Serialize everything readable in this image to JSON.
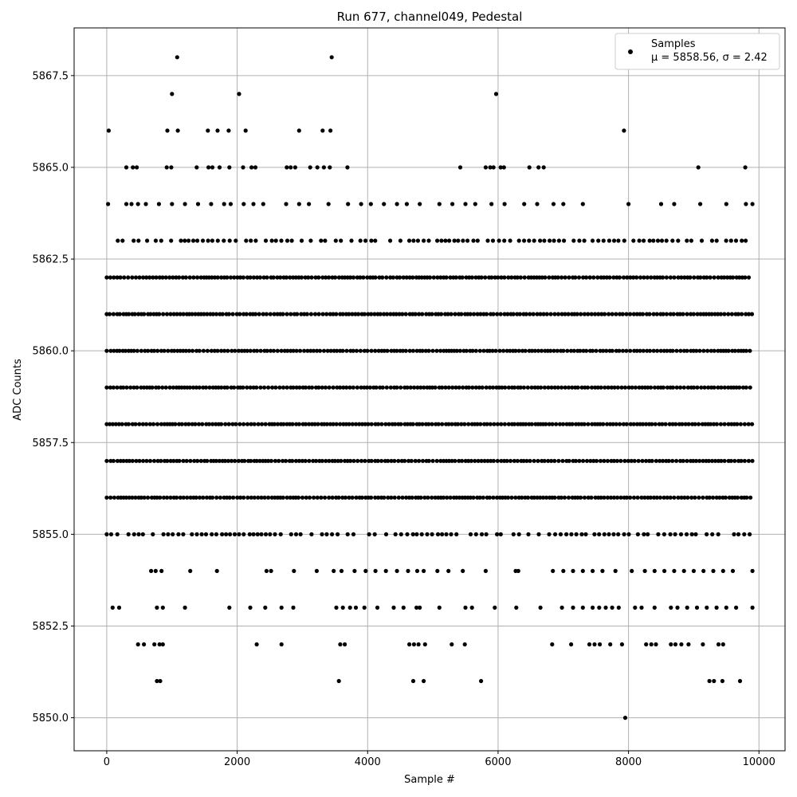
{
  "chart_data": {
    "type": "scatter",
    "title": "Run 677, channel049, Pedestal",
    "xlabel": "Sample #",
    "ylabel": "ADC Counts",
    "xlim": [
      -500,
      10400
    ],
    "ylim": [
      5849.1,
      5868.8
    ],
    "xticks": [
      0,
      2000,
      4000,
      6000,
      8000,
      10000
    ],
    "xtick_labels": [
      "0",
      "2000",
      "4000",
      "6000",
      "8000",
      "10000"
    ],
    "yticks": [
      5850.0,
      5852.5,
      5855.0,
      5857.5,
      5860.0,
      5862.5,
      5865.0,
      5867.5
    ],
    "ytick_labels": [
      "5850.0",
      "5852.5",
      "5855.0",
      "5857.5",
      "5860.0",
      "5862.5",
      "5865.0",
      "5867.5"
    ],
    "grid": true,
    "legend_position": "top-right",
    "marker_color": "#000000",
    "series": [
      {
        "name": "Samples",
        "stats_label": "μ = 5858.56, σ = 2.42",
        "mean": 5858.56,
        "std": 2.42,
        "sample_count": 9900,
        "dense_levels": [
          5855,
          5856,
          5857,
          5858,
          5859,
          5860,
          5861,
          5862,
          5863
        ],
        "sparse_levels": [
          {
            "y": 5864,
            "x": [
              20,
              300,
              380,
              480,
              600,
              800,
              1000,
              1200,
              1400,
              1600,
              1800,
              1900,
              2100,
              2250,
              2400,
              2750,
              2950,
              3100,
              3400,
              3700,
              3900,
              4050,
              4250,
              4450,
              4600,
              4800,
              5100,
              5300,
              5500,
              5650,
              5900,
              6100,
              6400,
              6600,
              6850,
              7000,
              7300,
              8000,
              8500,
              8700,
              9100,
              9500,
              9800,
              9900
            ]
          },
          {
            "y": 5865,
            "x": [
              300,
              400,
              460,
              920,
              990,
              1380,
              1560,
              1620,
              1730,
              1880,
              2090,
              2220,
              2280,
              2760,
              2820,
              2890,
              3120,
              3230,
              3330,
              3420,
              3690,
              5420,
              5810,
              5880,
              5930,
              6040,
              6090,
              6480,
              6620,
              6700,
              9070,
              9790
            ]
          },
          {
            "y": 5866,
            "x": [
              30,
              930,
              1090,
              1550,
              1700,
              1870,
              2130,
              2950,
              3310,
              3430,
              7930
            ]
          },
          {
            "y": 5867,
            "x": [
              1000,
              2030,
              5970
            ]
          },
          {
            "y": 5868,
            "x": [
              1080,
              3450
            ]
          },
          {
            "y": 5854,
            "x": [
              680,
              750,
              840,
              1280,
              1690,
              2450,
              2520,
              2870,
              3220,
              3480,
              3600,
              3800,
              3970,
              4120,
              4280,
              4450,
              4620,
              4760,
              4860,
              5070,
              5240,
              5460,
              5810,
              6270,
              6310,
              6840,
              7000,
              7150,
              7300,
              7450,
              7600,
              7800,
              8050,
              8250,
              8400,
              8550,
              8700,
              8850,
              9000,
              9150,
              9300,
              9450,
              9600,
              9900
            ]
          },
          {
            "y": 5853,
            "x": [
              90,
              190,
              770,
              860,
              1200,
              1880,
              2200,
              2430,
              2680,
              2860,
              3520,
              3620,
              3730,
              3820,
              3950,
              4150,
              4400,
              4550,
              4750,
              4800,
              5100,
              5500,
              5600,
              5950,
              6280,
              6650,
              6980,
              7150,
              7300,
              7450,
              7550,
              7650,
              7750,
              7850,
              8100,
              8200,
              8400,
              8650,
              8750,
              8900,
              9050,
              9200,
              9350,
              9500,
              9650,
              9900
            ]
          },
          {
            "y": 5852,
            "x": [
              480,
              570,
              730,
              810,
              860,
              2300,
              2680,
              3580,
              3650,
              4640,
              4710,
              4780,
              4880,
              5290,
              5490,
              6830,
              7120,
              7400,
              7480,
              7560,
              7720,
              7900,
              8270,
              8350,
              8420,
              8650,
              8720,
              8810,
              8920,
              9140,
              9380,
              9450
            ]
          },
          {
            "y": 5851,
            "x": [
              770,
              820,
              3560,
              4700,
              4860,
              5740,
              9240,
              9310,
              9440,
              9710
            ]
          },
          {
            "y": 5850,
            "x": [
              7950
            ]
          }
        ]
      }
    ]
  }
}
